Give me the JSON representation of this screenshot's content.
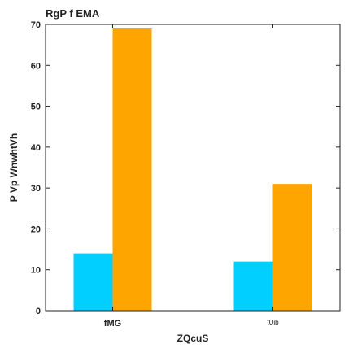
{
  "chart_data": {
    "type": "bar",
    "title": "RgP f EMA",
    "xlabel": "ZQcuS",
    "ylabel": "P Vp WnwhtVh",
    "categories": [
      "fMG",
      "tUib"
    ],
    "series": [
      {
        "values": [
          14,
          12
        ],
        "color": "#00cfff"
      },
      {
        "values": [
          69,
          31
        ],
        "color": "#ffa500"
      }
    ],
    "ylim": [
      0,
      70
    ],
    "yticks": [
      0,
      10,
      20,
      30,
      40,
      50,
      60,
      70
    ],
    "grid": false
  }
}
